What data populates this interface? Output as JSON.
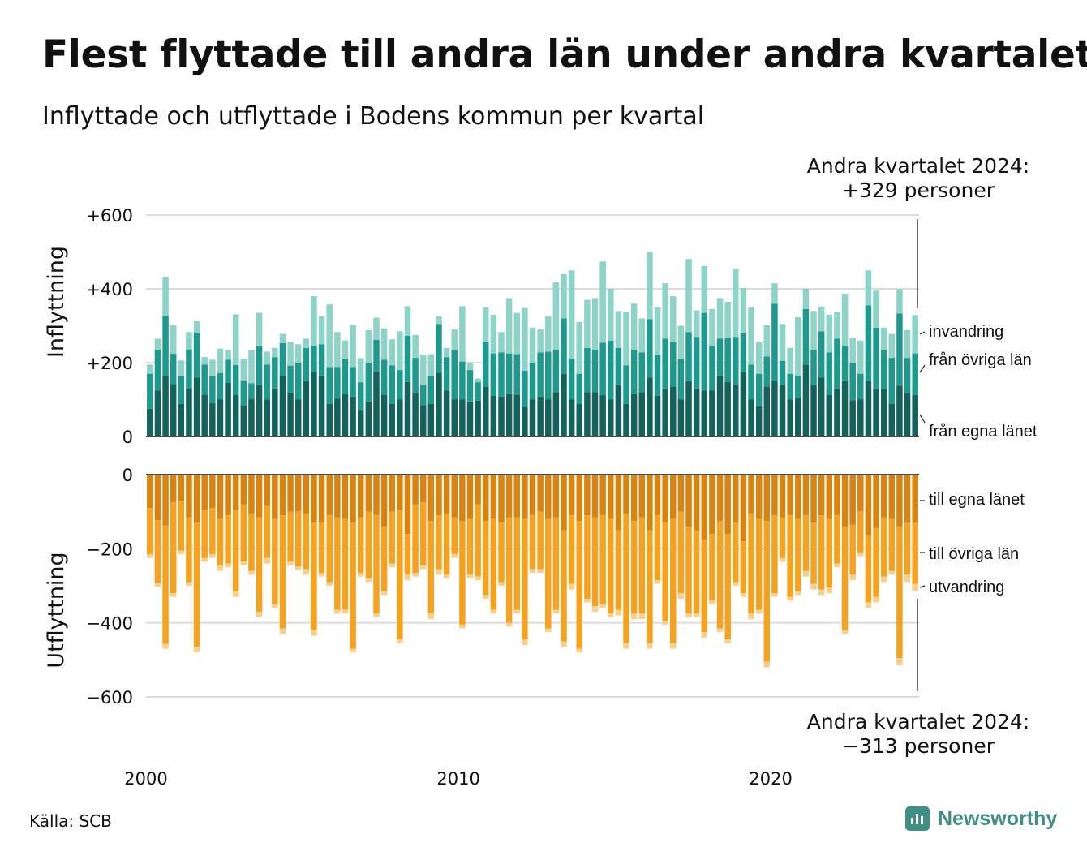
{
  "title": "Flest flyttade till andra län under andra kvartalet",
  "subtitle": "Inflyttade och utflyttade i Bodens kommun per kvartal",
  "source": "Källa: SCB",
  "logo_text": "Newsworthy",
  "colors": {
    "in_egna": "#13625b",
    "in_ovriga": "#1d9a8d",
    "in_invandring": "#8ed3c8",
    "out_egna": "#d98310",
    "out_ovriga": "#f6a221",
    "out_utvandring": "#f7d08e",
    "brand": "#3f8f86"
  },
  "annotations": {
    "top_line1": "Andra kvartalet 2024:",
    "top_line2": "+329 personer",
    "bottom_line1": "Andra kvartalet 2024:",
    "bottom_line2": "−313 personer"
  },
  "segment_labels": {
    "in_invandring": "invandring",
    "in_ovriga": "från övriga län",
    "in_egna": "från egna länet",
    "out_egna": "till egna länet",
    "out_ovriga": "till övriga län",
    "out_utvandring": "utvandring"
  },
  "chart_data": {
    "type": "bar",
    "stacked": true,
    "x_label": "",
    "x_tick_labels": [
      "2000",
      "2010",
      "2020"
    ],
    "x_range": [
      "2000 Q1",
      "2024 Q2"
    ],
    "panels": [
      {
        "axis_title": "Inflyttning",
        "y_range": [
          0,
          600
        ],
        "y_tick_labels": [
          "0",
          "+200",
          "+400",
          "+600"
        ],
        "series": [
          {
            "name": "från egna länet",
            "values": [
              75,
              125,
              163,
              142,
              88,
              131,
              160,
              113,
              90,
              100,
              145,
              112,
              82,
              101,
              140,
              100,
              130,
              163,
              117,
              100,
              150,
              175,
              165,
              88,
              103,
              115,
              108,
              72,
              95,
              175,
              113,
              88,
              100,
              148,
              118,
              85,
              88,
              173,
              125,
              100,
              100,
              95,
              97,
              135,
              110,
              108,
              115,
              113,
              80,
              100,
              108,
              100,
              120,
              170,
              100,
              88,
              120,
              120,
              112,
              100,
              140,
              88,
              115,
              120,
              160,
              110,
              130,
              135,
              100,
              150,
              130,
              125,
              125,
              165,
              148,
              140,
              175,
              100,
              82,
              135,
              150,
              140,
              100,
              105,
              195,
              140,
              160,
              113,
              130,
              150,
              98,
              100,
              150,
              130,
              128,
              88,
              138,
              118,
              112
            ]
          },
          {
            "name": "från övriga län",
            "values": [
              95,
              110,
              165,
              82,
              75,
              105,
              122,
              82,
              75,
              72,
              63,
              82,
              68,
              43,
              105,
              95,
              85,
              90,
              75,
              100,
              90,
              70,
              85,
              100,
              85,
              95,
              80,
              75,
              103,
              87,
              95,
              105,
              80,
              125,
              95,
              55,
              75,
              132,
              90,
              135,
              103,
              85,
              50,
              120,
              115,
              120,
              110,
              110,
              98,
              100,
              120,
              130,
              115,
              150,
              110,
              82,
              120,
              115,
              142,
              160,
              100,
              105,
              120,
              108,
              158,
              110,
              135,
              120,
              110,
              133,
              140,
              210,
              120,
              100,
              120,
              130,
              105,
              95,
              88,
              82,
              210,
              65,
              70,
              60,
              150,
              95,
              125,
              115,
              135,
              95,
              100,
              70,
              205,
              165,
              105,
              125,
              195,
              95,
              113
            ]
          },
          {
            "name": "invandring",
            "values": [
              25,
              30,
              105,
              77,
              43,
              47,
              30,
              20,
              43,
              66,
              25,
              137,
              60,
              90,
              90,
              35,
              25,
              25,
              65,
              50,
              25,
              135,
              75,
              170,
              95,
              50,
              115,
              65,
              90,
              60,
              85,
              70,
              105,
              80,
              62,
              82,
              60,
              20,
              25,
              55,
              150,
              20,
              10,
              95,
              105,
              55,
              150,
              112,
              170,
              95,
              62,
              95,
              183,
              120,
              240,
              140,
              130,
              140,
              220,
              140,
              100,
              145,
              125,
              92,
              182,
              130,
              150,
              125,
              90,
              198,
              72,
              127,
              100,
              110,
              97,
              183,
              122,
              155,
              85,
              85,
              55,
              100,
              70,
              158,
              55,
              105,
              67,
              102,
              73,
              142,
              70,
              90,
              95,
              100,
              62,
              65,
              66,
              75,
              104
            ]
          }
        ]
      },
      {
        "axis_title": "Utflyttning",
        "y_range": [
          -600,
          0
        ],
        "y_tick_labels": [
          "0",
          "−200",
          "−400",
          "−600"
        ],
        "series": [
          {
            "name": "till egna länet",
            "values": [
              -90,
              -123,
              -137,
              -75,
              -70,
              -115,
              -130,
              -95,
              -90,
              -120,
              -110,
              -95,
              -80,
              -105,
              -115,
              -85,
              -120,
              -110,
              -100,
              -100,
              -105,
              -130,
              -130,
              -110,
              -115,
              -120,
              -130,
              -115,
              -100,
              -110,
              -140,
              -100,
              -95,
              -160,
              -80,
              -75,
              -125,
              -110,
              -105,
              -115,
              -125,
              -120,
              -80,
              -125,
              -120,
              -130,
              -115,
              -115,
              -120,
              -110,
              -100,
              -120,
              -115,
              -150,
              -110,
              -125,
              -110,
              -115,
              -110,
              -120,
              -150,
              -105,
              -125,
              -115,
              -150,
              -110,
              -130,
              -120,
              -100,
              -140,
              -150,
              -175,
              -160,
              -125,
              -160,
              -130,
              -180,
              -105,
              -120,
              -125,
              -110,
              -115,
              -110,
              -120,
              -110,
              -130,
              -110,
              -120,
              -110,
              -140,
              -135,
              -100,
              -165,
              -145,
              -115,
              -120,
              -140,
              -130,
              -130
            ]
          },
          {
            "name": "till övriga län",
            "values": [
              -125,
              -170,
              -320,
              -245,
              -135,
              -175,
              -335,
              -130,
              -125,
              -125,
              -130,
              -220,
              -155,
              -155,
              -255,
              -140,
              -230,
              -305,
              -135,
              -148,
              -150,
              -290,
              -135,
              -180,
              -250,
              -245,
              -340,
              -150,
              -180,
              -265,
              -175,
              -140,
              -350,
              -110,
              -185,
              -170,
              -250,
              -145,
              -165,
              -100,
              -280,
              -150,
              -195,
              -200,
              -245,
              -160,
              -285,
              -250,
              -325,
              -145,
              -155,
              -295,
              -250,
              -300,
              -185,
              -345,
              -225,
              -240,
              -240,
              -255,
              -215,
              -350,
              -250,
              -260,
              -305,
              -175,
              -265,
              -335,
              -220,
              -235,
              -225,
              -250,
              -180,
              -290,
              -285,
              -160,
              -140,
              -270,
              -245,
              -380,
              -210,
              -110,
              -220,
              -195,
              -150,
              -165,
              -200,
              -185,
              -130,
              -280,
              -135,
              -110,
              -180,
              -185,
              -160,
              -140,
              -355,
              -140,
              -165
            ]
          },
          {
            "name": "utvandring",
            "values": [
              -10,
              -10,
              -13,
              -10,
              -10,
              -10,
              -15,
              -10,
              -10,
              -15,
              -10,
              -15,
              -10,
              -10,
              -15,
              -15,
              -10,
              -15,
              -10,
              -10,
              -15,
              -15,
              -10,
              -10,
              -10,
              -10,
              -10,
              -10,
              -10,
              -10,
              -10,
              -10,
              -10,
              -15,
              -10,
              -10,
              -15,
              -15,
              -10,
              -10,
              -10,
              -10,
              -10,
              -10,
              -10,
              -10,
              -10,
              -10,
              -15,
              -10,
              -10,
              -10,
              -10,
              -15,
              -15,
              -10,
              -10,
              -15,
              -10,
              -10,
              -15,
              -15,
              -15,
              -15,
              -15,
              -10,
              -10,
              -15,
              -15,
              -10,
              -10,
              -15,
              -10,
              -10,
              -10,
              -10,
              -10,
              -15,
              -10,
              -15,
              -10,
              -10,
              -10,
              -10,
              -15,
              -15,
              -15,
              -15,
              -10,
              -10,
              -15,
              -10,
              -15,
              -15,
              -15,
              -10,
              -20,
              -20,
              -18
            ]
          }
        ]
      }
    ]
  }
}
